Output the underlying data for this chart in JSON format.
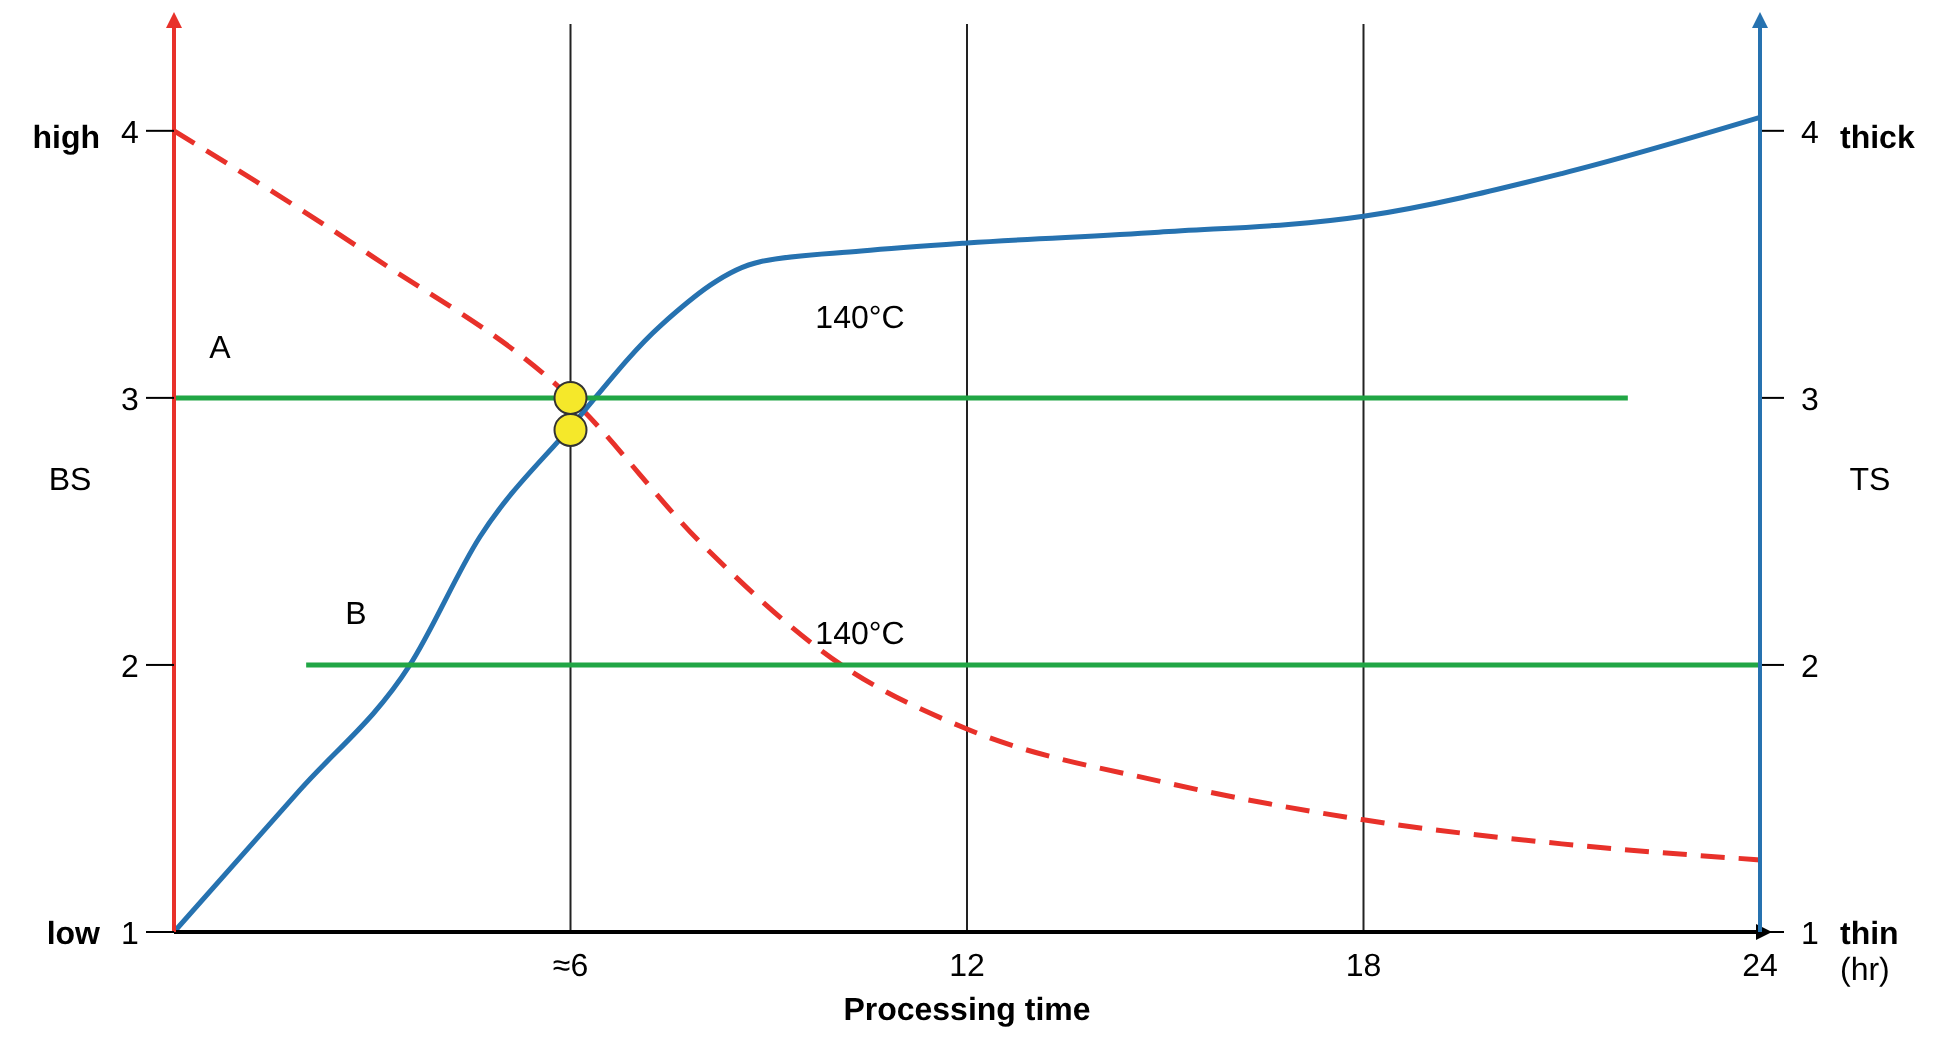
{
  "chart_data": {
    "type": "line",
    "xlabel": "Processing time",
    "ylabel": "BS",
    "y2label": "TS",
    "xlim": [
      0,
      24
    ],
    "xticks": [
      {
        "value": 6,
        "label": "≈6"
      },
      12,
      18,
      24
    ],
    "ylim": [
      1,
      4.4
    ],
    "yticks": [
      1,
      2,
      3,
      4
    ],
    "y2lim": [
      1,
      4.4
    ],
    "y2ticks": [
      1,
      2,
      3,
      4
    ],
    "grid": "x",
    "series": [
      {
        "color": "#e8312a",
        "line_style": "dashed",
        "marker": "none",
        "x": [
          0,
          3,
          6,
          8,
          10.1,
          12,
          15,
          18,
          21,
          24
        ],
        "values": [
          4,
          3.53,
          3,
          2.45,
          2,
          1.76,
          1.56,
          1.42,
          1.33,
          1.27
        ]
      },
      {
        "axis": "y2",
        "color": "#2672b0",
        "line_style": "solid",
        "marker": "none",
        "x": [
          0,
          1.9,
          3.57,
          4.63,
          6,
          7.36,
          8.87,
          10.4,
          12,
          14.9,
          18,
          21,
          24
        ],
        "values": [
          1,
          1.53,
          2,
          2.48,
          2.89,
          3.27,
          3.51,
          3.55,
          3.58,
          3.62,
          3.68,
          3.84,
          4.05
        ]
      },
      {
        "type": "line",
        "color": "#21a645",
        "line_style": "solid",
        "marker": "none",
        "x": [
          0,
          22
        ],
        "values": [
          3,
          3
        ]
      },
      {
        "type": "line",
        "color": "#21a645",
        "line_style": "solid",
        "marker": "none",
        "x": [
          2,
          24
        ],
        "values": [
          2,
          2
        ]
      },
      {
        "type": "scatter",
        "color": "#f5e82a",
        "marker": "circle",
        "x": [
          6,
          6
        ],
        "values": [
          3,
          2.88
        ]
      }
    ],
    "annotations": [
      "high",
      "low",
      "thick",
      "thin",
      "A",
      "B",
      "140°C",
      "140°C",
      "(hr)"
    ]
  }
}
